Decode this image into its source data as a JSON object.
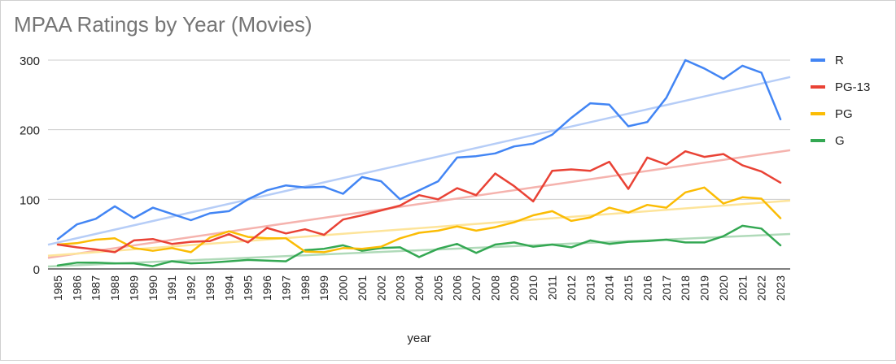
{
  "chart_data": {
    "type": "line",
    "title": "MPAA Ratings by Year (Movies)",
    "xlabel": "year",
    "ylabel": "",
    "ylim": [
      0,
      300
    ],
    "yticks": [
      0,
      100,
      200,
      300
    ],
    "grid": true,
    "legend_position": "right",
    "trendlines": true,
    "x": [
      "1985",
      "1986",
      "1987",
      "1988",
      "1989",
      "1990",
      "1991",
      "1992",
      "1993",
      "1994",
      "1995",
      "1996",
      "1997",
      "1998",
      "1999",
      "2000",
      "2001",
      "2002",
      "2003",
      "2004",
      "2005",
      "2006",
      "2007",
      "2008",
      "2009",
      "2010",
      "2011",
      "2012",
      "2013",
      "2014",
      "2015",
      "2016",
      "2017",
      "2018",
      "2019",
      "2020",
      "2021",
      "2022",
      "2023"
    ],
    "series": [
      {
        "name": "R",
        "color": "#4285f4",
        "trend_color": "#b6cdf7",
        "values": [
          43,
          64,
          72,
          90,
          73,
          88,
          79,
          70,
          80,
          83,
          100,
          113,
          120,
          117,
          118,
          108,
          132,
          126,
          100,
          113,
          126,
          160,
          162,
          166,
          176,
          180,
          193,
          217,
          238,
          236,
          205,
          211,
          246,
          300,
          288,
          273,
          292,
          282,
          215
        ]
      },
      {
        "name": "PG-13",
        "color": "#e94235",
        "trend_color": "#f5b3ae",
        "values": [
          35,
          31,
          28,
          24,
          41,
          43,
          36,
          39,
          40,
          50,
          38,
          59,
          51,
          57,
          49,
          71,
          77,
          84,
          91,
          106,
          100,
          116,
          106,
          137,
          119,
          97,
          141,
          143,
          141,
          154,
          115,
          160,
          150,
          169,
          161,
          165,
          149,
          140,
          124
        ]
      },
      {
        "name": "PG",
        "color": "#fbbc04",
        "trend_color": "#fde49a",
        "values": [
          35,
          37,
          42,
          44,
          30,
          26,
          30,
          24,
          45,
          54,
          46,
          44,
          44,
          25,
          24,
          30,
          29,
          32,
          44,
          52,
          55,
          61,
          55,
          60,
          67,
          77,
          83,
          69,
          74,
          88,
          81,
          92,
          88,
          110,
          117,
          94,
          103,
          101,
          73
        ]
      },
      {
        "name": "G",
        "color": "#34a853",
        "trend_color": "#b0dab9",
        "values": [
          5,
          9,
          9,
          8,
          8,
          4,
          11,
          8,
          9,
          11,
          13,
          12,
          11,
          27,
          29,
          34,
          26,
          30,
          31,
          17,
          29,
          36,
          23,
          35,
          38,
          32,
          35,
          31,
          41,
          36,
          39,
          40,
          42,
          38,
          38,
          47,
          62,
          58,
          34
        ]
      }
    ]
  }
}
